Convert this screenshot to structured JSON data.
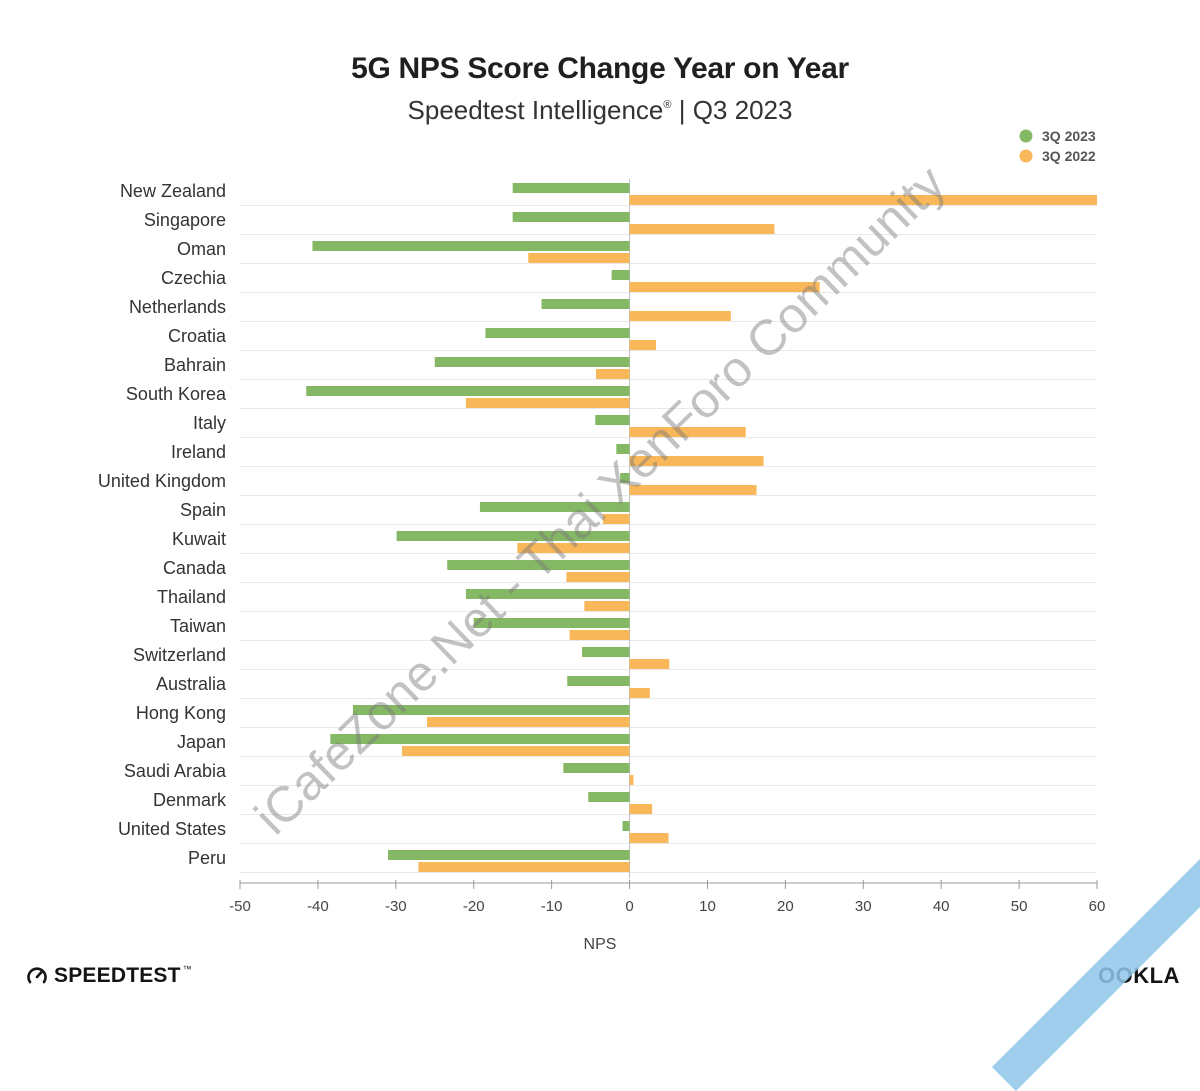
{
  "chart_data": {
    "type": "bar",
    "orientation": "horizontal",
    "title": "5G NPS Score Change Year on Year",
    "subtitle": "Speedtest Intelligence",
    "subtitle_mark": "®",
    "subtitle_suffix": " | Q3 2023",
    "xlabel": "NPS",
    "ylabel": "",
    "xlim": [
      -50,
      60
    ],
    "xticks": [
      -50,
      -40,
      -30,
      -20,
      -10,
      0,
      10,
      20,
      30,
      40,
      50,
      60
    ],
    "grid": true,
    "legend_position": "top-right",
    "categories": [
      "New Zealand",
      "Singapore",
      "Oman",
      "Czechia",
      "Netherlands",
      "Croatia",
      "Bahrain",
      "South Korea",
      "Italy",
      "Ireland",
      "United Kingdom",
      "Spain",
      "Kuwait",
      "Canada",
      "Thailand",
      "Taiwan",
      "Switzerland",
      "Australia",
      "Hong Kong",
      "Japan",
      "Saudi Arabia",
      "Denmark",
      "United States",
      "Peru"
    ],
    "series": [
      {
        "name": "3Q 2023",
        "color": "#85b865",
        "values": [
          -15,
          -15,
          -40.7,
          -2.3,
          -11.3,
          -18.5,
          -25,
          -41.5,
          -4.4,
          -1.7,
          -1.2,
          -19.2,
          -29.9,
          -23.4,
          -21,
          -20,
          -6.1,
          -8,
          -35.5,
          -38.4,
          -8.5,
          -5.3,
          -0.9,
          -31
        ]
      },
      {
        "name": "3Q 2022",
        "color": "#f8b758",
        "values": [
          60,
          18.6,
          -13,
          24.4,
          13,
          3.4,
          -4.3,
          -21,
          14.9,
          17.2,
          16.3,
          -3.4,
          -14.4,
          -8.1,
          -5.8,
          -7.7,
          5.1,
          2.6,
          -26,
          -29.2,
          0.5,
          2.9,
          5,
          -27.1
        ]
      }
    ]
  },
  "branding": {
    "speedtest_label": "SPEEDTEST",
    "speedtest_mark": "™",
    "ookla_label": "OOKLA",
    "watermark": "iCafeZone.Net - Thai XenForo Community"
  }
}
